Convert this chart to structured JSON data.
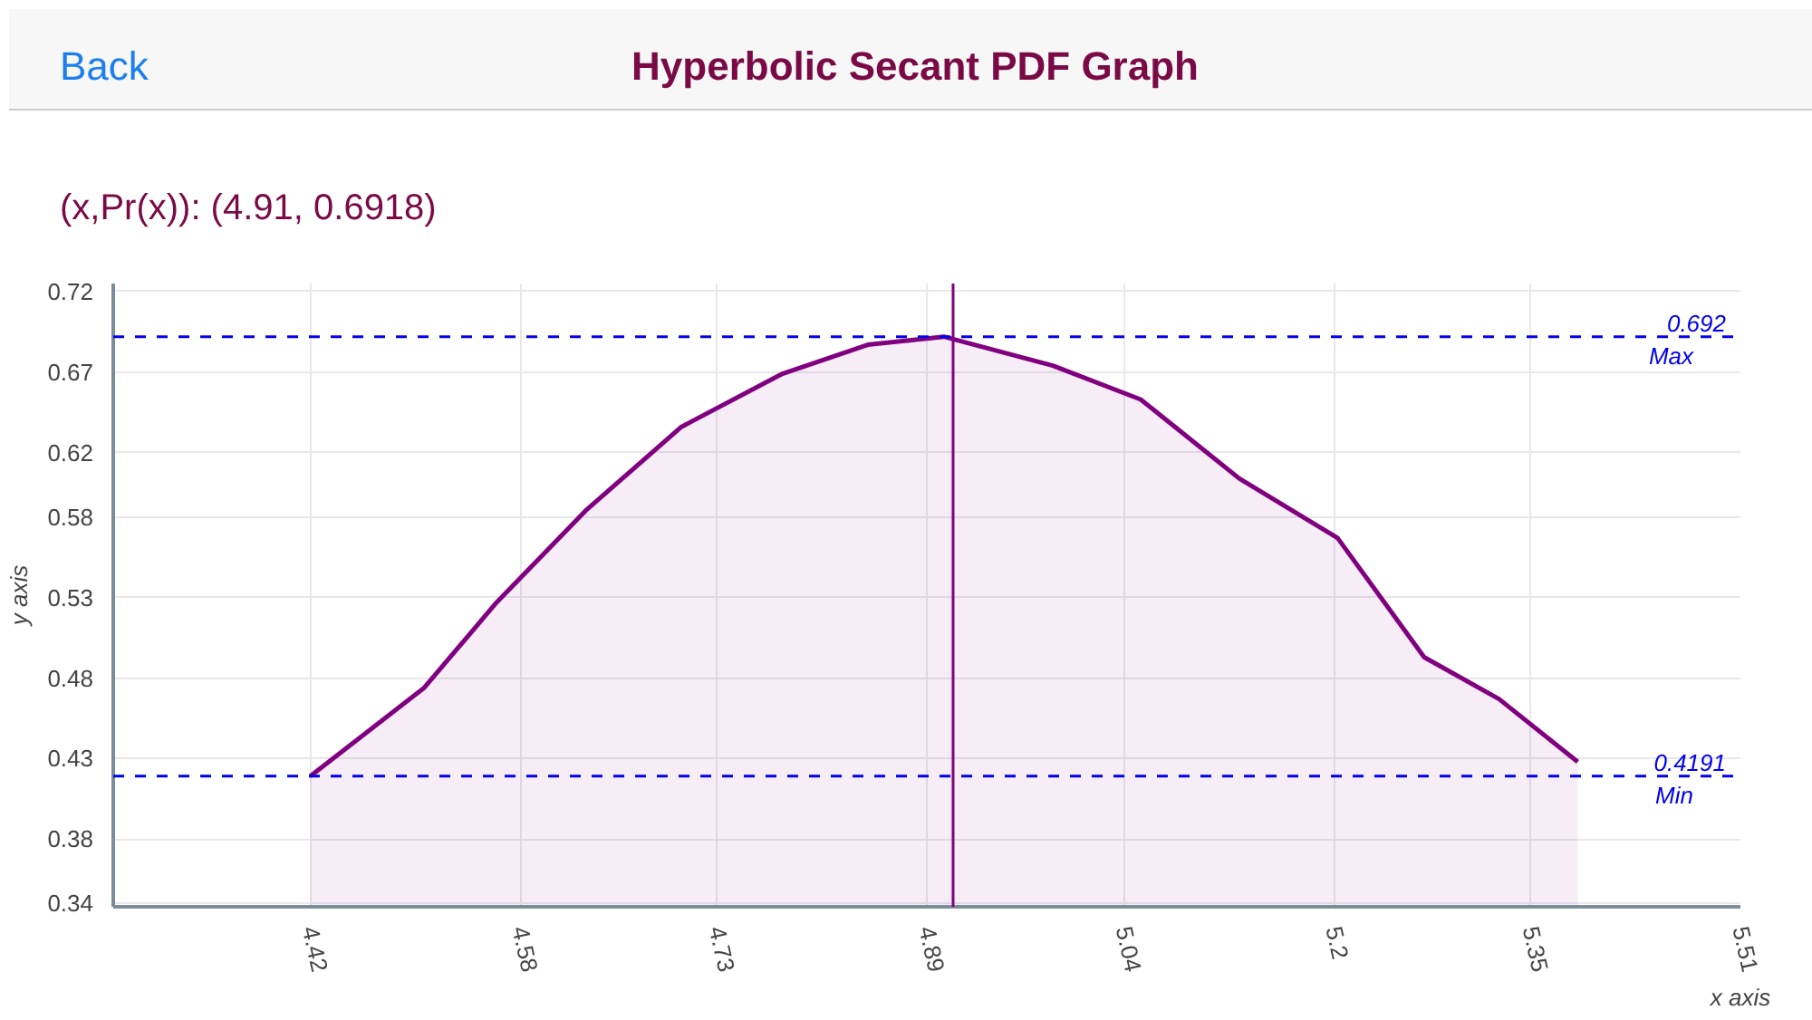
{
  "chart_data": {
    "type": "area",
    "title": "Hyperbolic Secant PDF Graph",
    "xlabel": "x axis",
    "ylabel": "y axis",
    "annotations": [
      "Back",
      "(x,Pr(x)): (4.91, 0.6918)",
      {
        "text": "Max",
        "x": 5.51,
        "y": 0.692
      },
      {
        "text": "Min",
        "x": 5.51,
        "y": 0.4191
      }
    ],
    "x": [
      4.42,
      4.507,
      4.561,
      4.63,
      4.703,
      4.78,
      4.845,
      4.903,
      4.986,
      5.053,
      5.128,
      5.203,
      5.269,
      5.326,
      5.386
    ],
    "series": [
      {
        "color": "#800080",
        "values": [
          0.419,
          0.474,
          0.526,
          0.584,
          0.636,
          0.669,
          0.687,
          0.692,
          0.674,
          0.653,
          0.604,
          0.567,
          0.493,
          0.467,
          0.428
        ]
      }
    ],
    "xlim": [
      4.27,
      5.51
    ],
    "ylim": [
      0.338,
      0.725
    ],
    "xticks": [
      4.42,
      4.58,
      4.73,
      4.89,
      5.04,
      5.2,
      5.35,
      5.51
    ],
    "yticks": [
      0.34,
      0.38,
      0.43,
      0.48,
      0.53,
      0.58,
      0.62,
      0.67,
      0.72
    ],
    "ref_lines": [
      {
        "axis": "y",
        "value": 0.692,
        "label": "0.692",
        "color": "#0000ee",
        "line_style": "dashed"
      },
      {
        "axis": "y",
        "value": 0.4191,
        "label": "0.4191",
        "color": "#0000ee",
        "line_style": "dashed"
      },
      {
        "axis": "x",
        "value": 4.91,
        "color": "#800080",
        "line_style": "solid"
      }
    ],
    "grid": true,
    "marker": "none",
    "line_style": "solid"
  }
}
